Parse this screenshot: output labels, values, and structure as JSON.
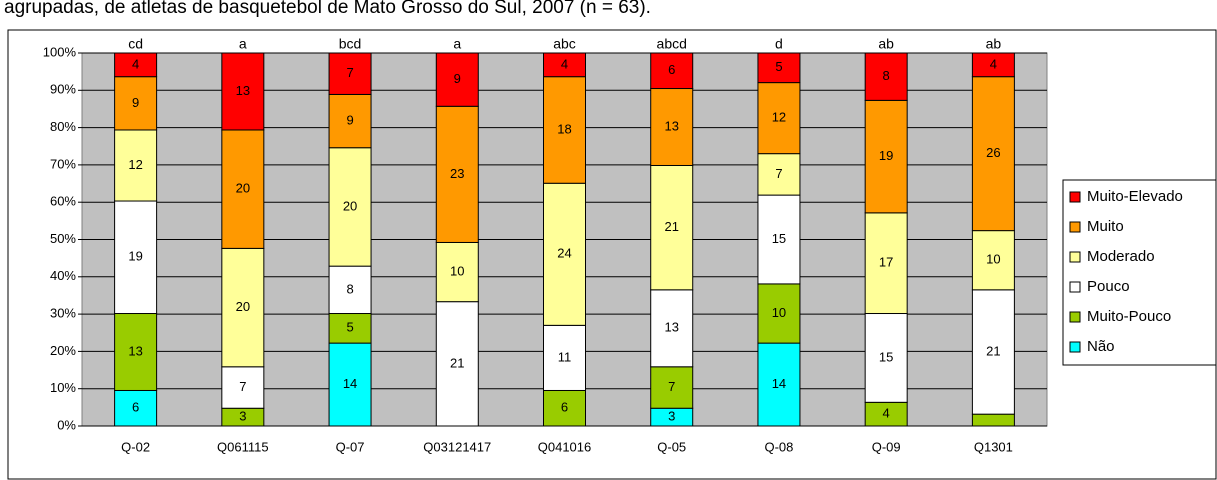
{
  "chart_data": {
    "type": "stacked_percent_bar",
    "title": "agrupadas, de atletas de basquetebol de Mato Grosso do Sul, 2007 (n = 63).",
    "categories": [
      "Q-02",
      "Q061115",
      "Q-07",
      "Q03121417",
      "Q041016",
      "Q-05",
      "Q-08",
      "Q-09",
      "Q1301"
    ],
    "annotations": [
      "cd",
      "a",
      "bcd",
      "a",
      "abc",
      "abcd",
      "d",
      "ab",
      "ab"
    ],
    "series": [
      {
        "name": "Não",
        "color": "#00ffff",
        "values": [
          6,
          0,
          14,
          0,
          0,
          3,
          14,
          0,
          0
        ],
        "value_labels": [
          "6",
          null,
          "14",
          null,
          null,
          "3",
          "14",
          null,
          null
        ]
      },
      {
        "name": "Muito-Pouco",
        "color": "#99cc00",
        "values": [
          13,
          3,
          5,
          0,
          6,
          7,
          10,
          4,
          2
        ],
        "value_labels": [
          "13",
          "3",
          "5",
          null,
          "6",
          "7",
          "10",
          "4",
          null
        ]
      },
      {
        "name": "Pouco",
        "color": "#ffffff",
        "values": [
          19,
          7,
          8,
          21,
          11,
          13,
          15,
          15,
          21
        ],
        "value_labels": [
          "19",
          "7",
          "8",
          "21",
          "11",
          "13",
          "15",
          "15",
          "21"
        ]
      },
      {
        "name": "Moderado",
        "color": "#ffff99",
        "values": [
          12,
          20,
          20,
          10,
          24,
          21,
          7,
          17,
          10
        ],
        "value_labels": [
          "12",
          "20",
          "20",
          "10",
          "24",
          "21",
          "7",
          "17",
          "10"
        ]
      },
      {
        "name": "Muito",
        "color": "#ff9900",
        "values": [
          9,
          20,
          9,
          23,
          18,
          13,
          12,
          19,
          26
        ],
        "value_labels": [
          "9",
          "20",
          "9",
          "23",
          "18",
          "13",
          "12",
          "19",
          "26"
        ]
      },
      {
        "name": "Muito-Elevado",
        "color": "#ff0000",
        "values": [
          4,
          13,
          7,
          9,
          4,
          6,
          5,
          8,
          4
        ],
        "value_labels": [
          "4",
          "13",
          "7",
          "9",
          "4",
          "6",
          "5",
          "8",
          "4"
        ]
      }
    ],
    "ylim": [
      0,
      100
    ],
    "yticks": [
      {
        "value": 0,
        "label": "0%"
      },
      {
        "value": 10,
        "label": "10%"
      },
      {
        "value": 20,
        "label": "20%"
      },
      {
        "value": 30,
        "label": "30%"
      },
      {
        "value": 40,
        "label": "40%"
      },
      {
        "value": 50,
        "label": "50%"
      },
      {
        "value": 60,
        "label": "60%"
      },
      {
        "value": 70,
        "label": "70%"
      },
      {
        "value": 80,
        "label": "80%"
      },
      {
        "value": 90,
        "label": "90%"
      },
      {
        "value": 100,
        "label": "100%"
      }
    ],
    "grid": true,
    "legend": "right",
    "plot_background": "#c0c0c0"
  }
}
